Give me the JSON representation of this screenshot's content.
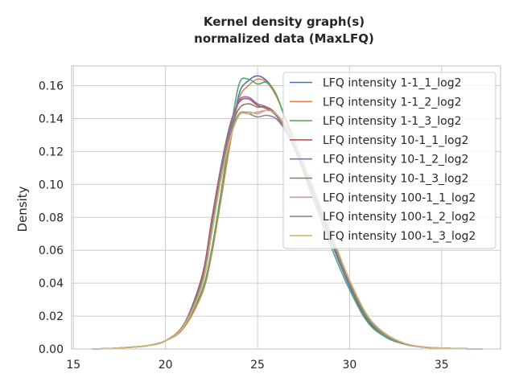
{
  "chart_data": {
    "type": "line",
    "title": [
      "Kernel density graph(s)",
      "normalized data (MaxLFQ)"
    ],
    "xlabel": "",
    "ylabel": "Density",
    "xlim": [
      14.9,
      38.2
    ],
    "ylim": [
      0,
      0.172
    ],
    "xticks": [
      15,
      20,
      25,
      30,
      35
    ],
    "yticks": [
      0.0,
      0.02,
      0.04,
      0.06,
      0.08,
      0.1,
      0.12,
      0.14,
      0.16
    ],
    "ytick_labels": [
      "0.00",
      "0.02",
      "0.04",
      "0.06",
      "0.08",
      "0.10",
      "0.12",
      "0.14",
      "0.16"
    ],
    "grid": true,
    "legend_position": "top-right",
    "x": [
      16.0,
      17.0,
      18.0,
      19.0,
      20.0,
      21.0,
      22.0,
      22.5,
      23.0,
      23.5,
      24.0,
      24.5,
      25.0,
      25.5,
      26.0,
      26.5,
      27.0,
      28.0,
      29.0,
      30.0,
      31.0,
      32.0,
      33.0,
      34.0,
      35.0,
      36.0,
      37.2
    ],
    "series": [
      {
        "name": "LFQ intensity 1-1_1_log2",
        "color": "#4c72b0",
        "values": [
          0.0,
          0.0003,
          0.001,
          0.002,
          0.005,
          0.013,
          0.035,
          0.058,
          0.09,
          0.125,
          0.155,
          0.163,
          0.166,
          0.163,
          0.155,
          0.14,
          0.125,
          0.095,
          0.065,
          0.038,
          0.017,
          0.007,
          0.003,
          0.0012,
          0.0005,
          0.0002,
          0.0
        ]
      },
      {
        "name": "LFQ intensity 1-1_2_log2",
        "color": "#dd8452",
        "values": [
          0.0,
          0.0003,
          0.001,
          0.002,
          0.005,
          0.013,
          0.034,
          0.057,
          0.09,
          0.124,
          0.152,
          0.16,
          0.164,
          0.162,
          0.154,
          0.141,
          0.127,
          0.097,
          0.068,
          0.04,
          0.019,
          0.008,
          0.003,
          0.0012,
          0.0005,
          0.0002,
          0.0
        ]
      },
      {
        "name": "LFQ intensity 1-1_3_log2",
        "color": "#55a868",
        "values": [
          0.0,
          0.0003,
          0.001,
          0.002,
          0.005,
          0.014,
          0.036,
          0.06,
          0.094,
          0.13,
          0.161,
          0.164,
          0.161,
          0.162,
          0.155,
          0.14,
          0.123,
          0.092,
          0.062,
          0.036,
          0.016,
          0.007,
          0.003,
          0.0012,
          0.0005,
          0.0002,
          0.0
        ]
      },
      {
        "name": "LFQ intensity 10-1_1_log2",
        "color": "#c44e52",
        "values": [
          0.0,
          0.0003,
          0.001,
          0.002,
          0.005,
          0.015,
          0.045,
          0.078,
          0.11,
          0.136,
          0.15,
          0.152,
          0.148,
          0.146,
          0.142,
          0.133,
          0.122,
          0.095,
          0.066,
          0.039,
          0.018,
          0.008,
          0.003,
          0.0012,
          0.0005,
          0.0002,
          0.0
        ]
      },
      {
        "name": "LFQ intensity 10-1_2_log2",
        "color": "#8172b3",
        "values": [
          0.0,
          0.0003,
          0.001,
          0.002,
          0.005,
          0.015,
          0.043,
          0.075,
          0.108,
          0.135,
          0.151,
          0.153,
          0.149,
          0.147,
          0.142,
          0.133,
          0.122,
          0.095,
          0.066,
          0.039,
          0.018,
          0.008,
          0.003,
          0.0012,
          0.0005,
          0.0002,
          0.0
        ]
      },
      {
        "name": "LFQ intensity 10-1_3_log2",
        "color": "#937860",
        "values": [
          0.0,
          0.0003,
          0.001,
          0.002,
          0.005,
          0.015,
          0.042,
          0.073,
          0.106,
          0.132,
          0.146,
          0.149,
          0.147,
          0.147,
          0.143,
          0.134,
          0.123,
          0.096,
          0.067,
          0.04,
          0.018,
          0.008,
          0.003,
          0.0012,
          0.0005,
          0.0002,
          0.0
        ]
      },
      {
        "name": "LFQ intensity 100-1_1_log2",
        "color": "#da8bc3",
        "values": [
          0.0,
          0.0003,
          0.001,
          0.002,
          0.005,
          0.015,
          0.04,
          0.07,
          0.103,
          0.128,
          0.142,
          0.144,
          0.143,
          0.145,
          0.143,
          0.135,
          0.124,
          0.097,
          0.068,
          0.041,
          0.019,
          0.008,
          0.003,
          0.0012,
          0.0005,
          0.0002,
          0.0
        ]
      },
      {
        "name": "LFQ intensity 100-1_2_log2",
        "color": "#8c8c8c",
        "values": [
          0.0,
          0.0003,
          0.001,
          0.002,
          0.005,
          0.015,
          0.041,
          0.072,
          0.105,
          0.13,
          0.143,
          0.143,
          0.141,
          0.142,
          0.14,
          0.133,
          0.123,
          0.097,
          0.068,
          0.041,
          0.019,
          0.008,
          0.003,
          0.0012,
          0.0005,
          0.0002,
          0.0
        ]
      },
      {
        "name": "LFQ intensity 100-1_3_log2",
        "color": "#ccb974",
        "values": [
          0.0,
          0.0003,
          0.001,
          0.002,
          0.005,
          0.014,
          0.039,
          0.069,
          0.102,
          0.127,
          0.142,
          0.143,
          0.144,
          0.145,
          0.143,
          0.136,
          0.126,
          0.099,
          0.07,
          0.042,
          0.02,
          0.009,
          0.0035,
          0.0013,
          0.0005,
          0.0002,
          0.0
        ]
      }
    ]
  }
}
